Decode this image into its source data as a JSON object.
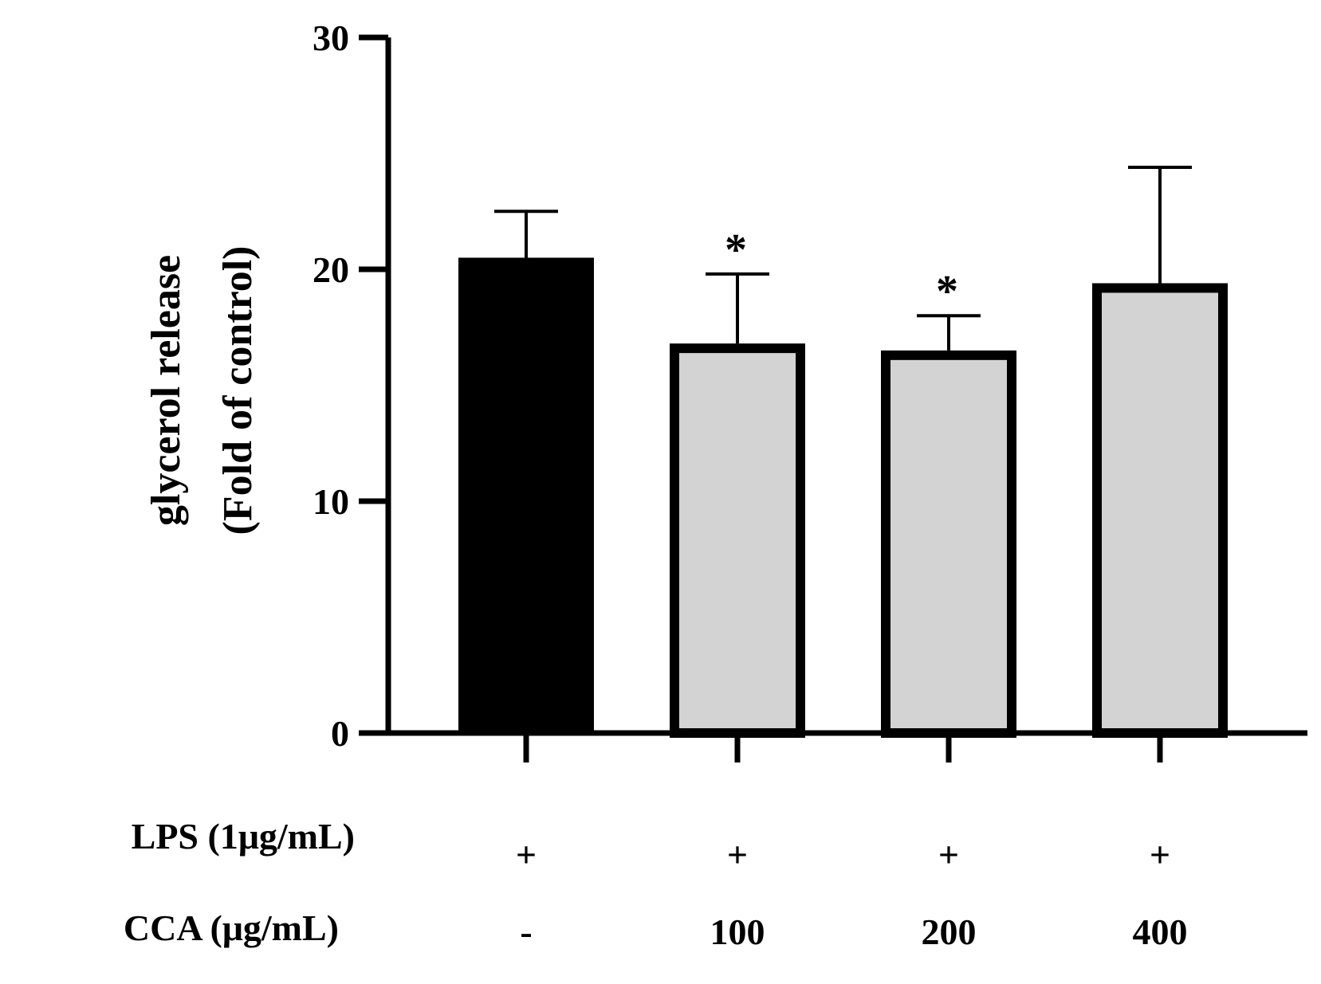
{
  "chart_data": {
    "type": "bar",
    "title": "",
    "ylabel": [
      "glycerol release",
      "(Fold of control)"
    ],
    "xlabel": "",
    "ylim": [
      0,
      30
    ],
    "yticks": [
      "0",
      "10",
      "20",
      "30"
    ],
    "ytick_values": [
      0,
      10,
      20,
      30
    ],
    "grid": false,
    "legend": "none",
    "bars": [
      {
        "lps": "+",
        "cca": "-",
        "value": 20.5,
        "error": 2.0,
        "sig": "",
        "fill": "#000000"
      },
      {
        "lps": "+",
        "cca": "100",
        "value": 16.8,
        "error": 3.0,
        "sig": "*",
        "fill": "#d3d3d3"
      },
      {
        "lps": "+",
        "cca": "200",
        "value": 16.5,
        "error": 1.5,
        "sig": "*",
        "fill": "#d3d3d3"
      },
      {
        "lps": "+",
        "cca": "400",
        "value": 19.4,
        "error": 5.0,
        "sig": "",
        "fill": "#d3d3d3"
      }
    ],
    "row_labels": {
      "lps": "LPS (1μg/mL)",
      "cca": "CCA (μg/mL)"
    }
  }
}
